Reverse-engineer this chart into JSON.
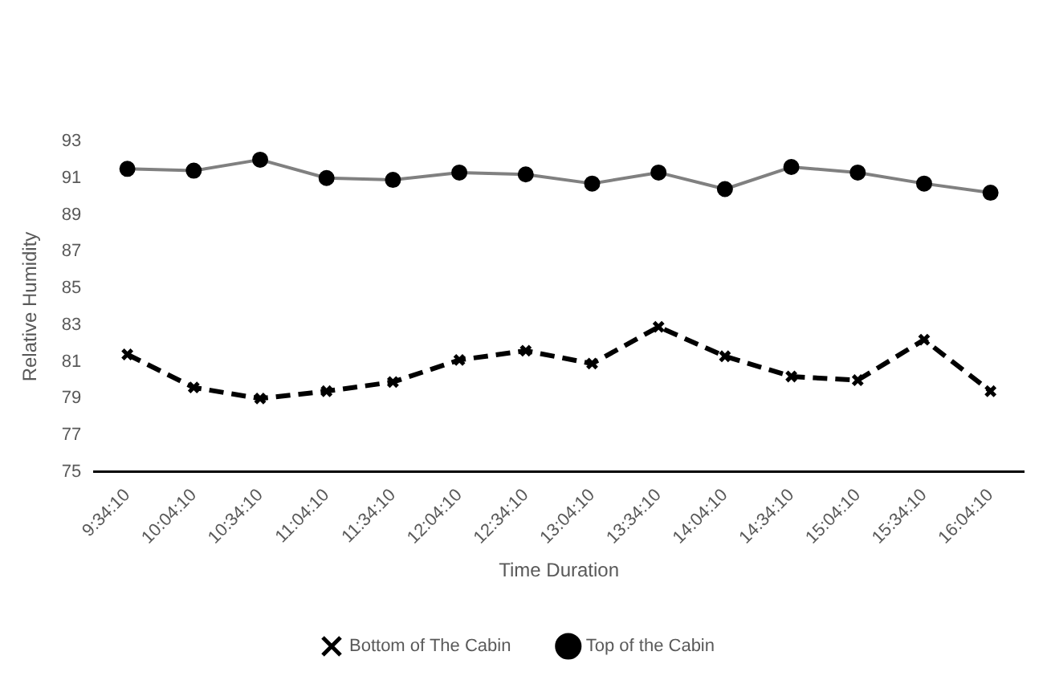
{
  "chart_data": {
    "type": "line",
    "xlabel": "Time Duration",
    "ylabel": "Relative Humidity",
    "categories": [
      "9:34:10",
      "10:04:10",
      "10:34:10",
      "11:04:10",
      "11:34:10",
      "12:04:10",
      "12:34:10",
      "13:04:10",
      "13:34:10",
      "14:04:10",
      "14:34:10",
      "15:04:10",
      "15:34:10",
      "16:04:10"
    ],
    "series": [
      {
        "name": "Bottom of The Cabin",
        "color": "#000000",
        "marker": "cross",
        "line_style": "dashed",
        "values": [
          81.4,
          79.6,
          79.0,
          79.4,
          79.9,
          81.1,
          81.6,
          80.9,
          82.9,
          81.3,
          80.2,
          80.0,
          82.2,
          79.4
        ]
      },
      {
        "name": "Top of the Cabin",
        "color": "#808080",
        "marker": "circle",
        "line_style": "solid",
        "values": [
          91.5,
          91.4,
          92.0,
          91.0,
          90.9,
          91.3,
          91.2,
          90.7,
          91.3,
          90.4,
          91.6,
          91.3,
          90.7,
          90.2
        ]
      }
    ],
    "ylim": [
      75,
      93
    ],
    "yticks": [
      75,
      77,
      79,
      81,
      83,
      85,
      87,
      89,
      91,
      93
    ],
    "grid": false,
    "legend": "bottom"
  }
}
